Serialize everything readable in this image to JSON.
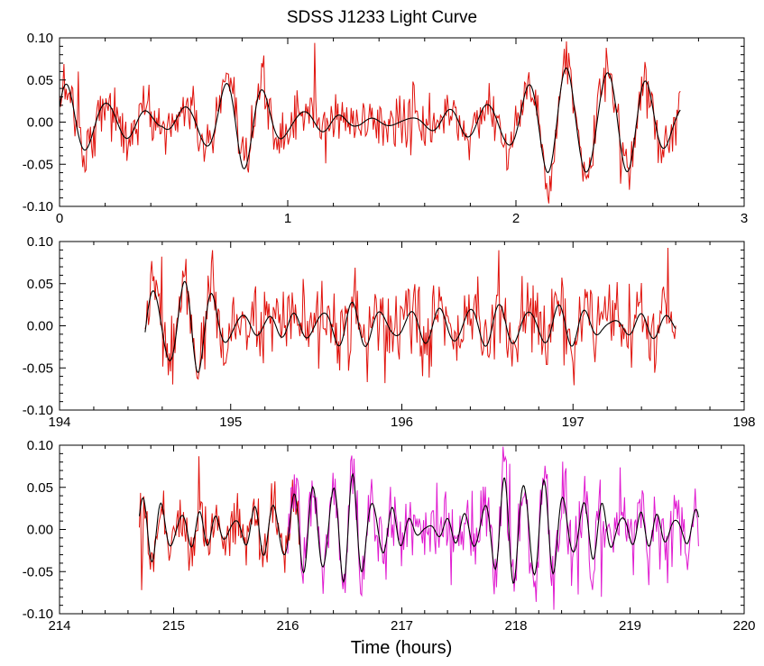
{
  "figure": {
    "title": "SDSS J1233 Light Curve",
    "xlabel": "Time (hours)"
  },
  "colors": {
    "data_red": "#e0120c",
    "data_magenta": "#e01ad0",
    "model_black": "#000000",
    "axes": "#000000"
  },
  "chart_data": [
    {
      "type": "line",
      "panel": "top",
      "xlim": [
        0,
        3
      ],
      "ylim": [
        -0.1,
        0.1
      ],
      "x_ticks": [
        "0",
        "1",
        "2",
        "3"
      ],
      "y_ticks": [
        "0.10",
        "0.05",
        "0.00",
        "-0.05",
        "-0.10"
      ],
      "grid": false,
      "x_range_observed": [
        0.0,
        2.72
      ],
      "series": [
        {
          "role": "observed light curve (noisy)",
          "color": "#e0120c",
          "style": "line",
          "x_range": [
            0.0,
            2.72
          ],
          "amplitude_approx": 0.035,
          "noise_sigma_approx": 0.016,
          "extremes": [
            {
              "x": 1.12,
              "y": 0.094
            },
            {
              "x": 2.23,
              "y": 0.082
            },
            {
              "x": 2.46,
              "y": -0.073
            },
            {
              "x": 0.08,
              "y": 0.06
            }
          ]
        },
        {
          "role": "pulsation model fit (smooth)",
          "color": "#000000",
          "style": "line",
          "x_range": [
            0.0,
            2.72
          ],
          "envelope_points": [
            [
              0.0,
              0.045
            ],
            [
              0.45,
              0.005
            ],
            [
              0.8,
              0.06
            ],
            [
              1.3,
              0.01
            ],
            [
              1.8,
              0.02
            ],
            [
              2.35,
              0.07
            ],
            [
              2.7,
              0.03
            ]
          ]
        }
      ]
    },
    {
      "type": "line",
      "panel": "middle",
      "xlim": [
        194,
        198
      ],
      "ylim": [
        -0.1,
        0.1
      ],
      "x_ticks": [
        "194",
        "195",
        "196",
        "197",
        "198"
      ],
      "y_ticks": [
        "0.10",
        "0.05",
        "0.00",
        "-0.05",
        "-0.10"
      ],
      "grid": false,
      "series": [
        {
          "role": "observed light curve (noisy)",
          "color": "#e0120c",
          "style": "line",
          "x_range": [
            194.5,
            197.6
          ],
          "amplitude_approx": 0.03,
          "noise_sigma_approx": 0.022,
          "extremes": [
            {
              "x": 194.6,
              "y": 0.082
            },
            {
              "x": 195.9,
              "y": -0.068
            }
          ]
        },
        {
          "role": "pulsation model fit (smooth)",
          "color": "#000000",
          "style": "line",
          "x_range": [
            194.5,
            197.6
          ],
          "envelope_points": [
            [
              194.5,
              0.045
            ],
            [
              194.8,
              0.06
            ],
            [
              195.2,
              0.02
            ],
            [
              195.5,
              0.05
            ],
            [
              195.95,
              0.015
            ],
            [
              196.3,
              0.02
            ],
            [
              196.7,
              0.025
            ],
            [
              197.15,
              0.045
            ],
            [
              197.6,
              0.015
            ]
          ]
        }
      ]
    },
    {
      "type": "line",
      "panel": "bottom",
      "xlim": [
        214,
        220
      ],
      "ylim": [
        -0.1,
        0.1
      ],
      "x_ticks": [
        "214",
        "215",
        "216",
        "217",
        "218",
        "219",
        "220"
      ],
      "y_ticks": [
        "0.10",
        "0.05",
        "0.00",
        "-0.05",
        "-0.10"
      ],
      "grid": false,
      "series": [
        {
          "role": "observed light curve (noisy)",
          "color": "#e0120c",
          "style": "line",
          "x_range": [
            214.7,
            216.1
          ],
          "amplitude_approx": 0.035,
          "noise_sigma_approx": 0.018,
          "extremes": [
            {
              "x": 214.72,
              "y": -0.072
            },
            {
              "x": 215.22,
              "y": 0.087
            }
          ]
        },
        {
          "role": "observed light curve, second run (noisy)",
          "color": "#e01ad0",
          "style": "line",
          "x_range": [
            216.0,
            219.6
          ],
          "amplitude_approx": 0.035,
          "noise_sigma_approx": 0.022,
          "extremes": [
            {
              "x": 217.95,
              "y": 0.078
            },
            {
              "x": 218.75,
              "y": -0.08
            }
          ]
        },
        {
          "role": "pulsation model fit (smooth)",
          "color": "#000000",
          "style": "line",
          "x_range": [
            214.7,
            219.6
          ],
          "envelope_points": [
            [
              214.7,
              0.04
            ],
            [
              215.2,
              0.045
            ],
            [
              215.6,
              0.03
            ],
            [
              216.2,
              0.045
            ],
            [
              216.6,
              0.062
            ],
            [
              217.0,
              0.03
            ],
            [
              217.5,
              0.025
            ],
            [
              218.0,
              0.065
            ],
            [
              218.5,
              0.035
            ],
            [
              219.1,
              0.045
            ],
            [
              219.55,
              0.03
            ]
          ]
        }
      ]
    }
  ]
}
